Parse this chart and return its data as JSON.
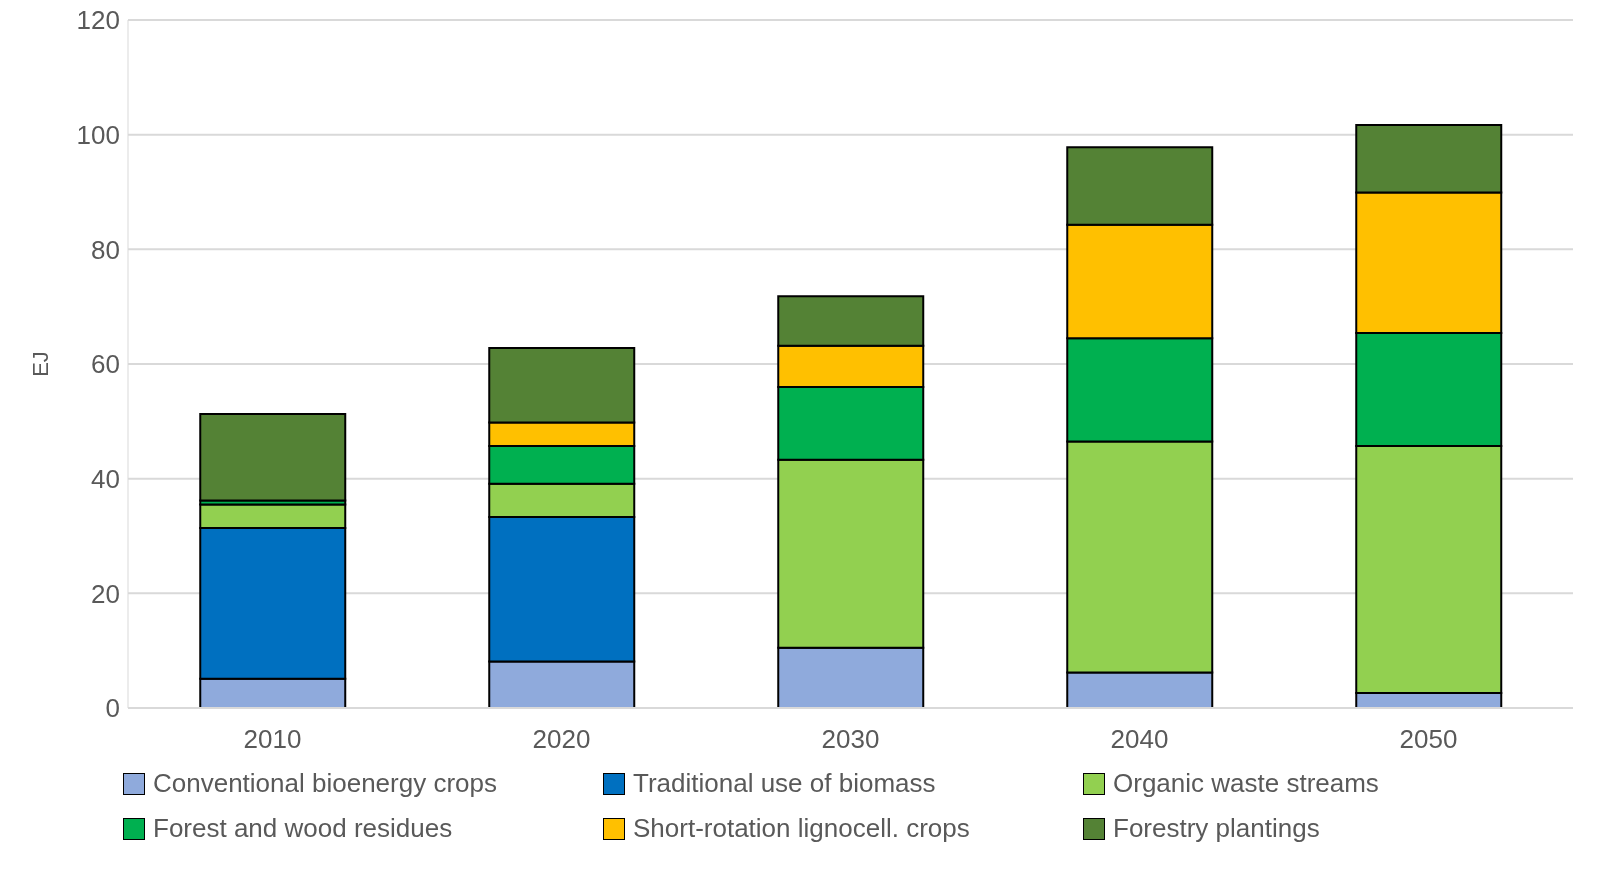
{
  "chart_data": {
    "type": "bar",
    "stacked": true,
    "ylabel": "EJ",
    "categories": [
      "2010",
      "2020",
      "2030",
      "2040",
      "2050"
    ],
    "series": [
      {
        "name": "Conventional bioenergy crops",
        "color": "#8faadc",
        "values": [
          5.1,
          8.1,
          10.5,
          6.2,
          2.6
        ]
      },
      {
        "name": "Traditional use of biomass",
        "color": "#0070c0",
        "values": [
          26.3,
          25.2,
          0,
          0,
          0
        ]
      },
      {
        "name": "Organic waste streams",
        "color": "#92d050",
        "values": [
          4.1,
          5.8,
          32.8,
          40.3,
          43.1
        ]
      },
      {
        "name": "Forest and wood residues",
        "color": "#00b050",
        "values": [
          0.7,
          6.6,
          12.7,
          18.0,
          19.7
        ]
      },
      {
        "name": "Short-rotation lignocell. crops",
        "color": "#ffc000",
        "values": [
          0,
          4.1,
          7.2,
          19.8,
          24.5
        ]
      },
      {
        "name": "Forestry plantings",
        "color": "#548235",
        "values": [
          15.1,
          13.0,
          8.6,
          13.5,
          11.8
        ]
      }
    ],
    "ylim": [
      0,
      120
    ],
    "yticks": [
      0,
      20,
      40,
      60,
      80,
      100,
      120
    ],
    "grid": "y",
    "legend": "bottom"
  }
}
